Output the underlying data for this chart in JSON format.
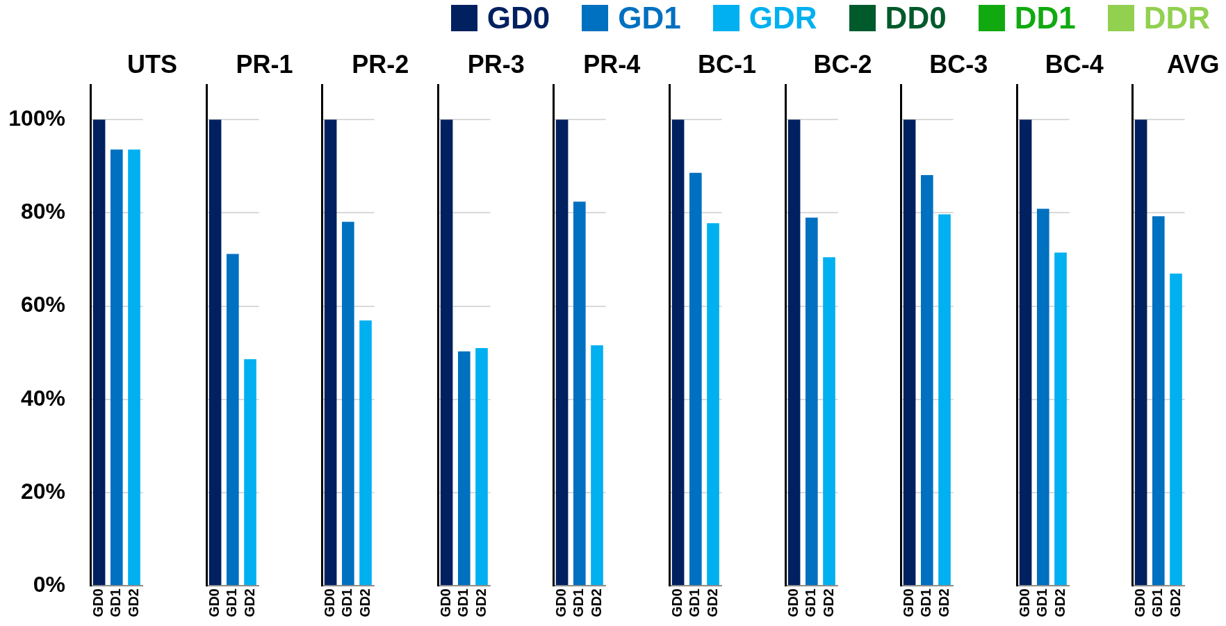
{
  "chart_data": [
    {
      "type": "bar",
      "title": "UTS",
      "categories": [
        "GD0",
        "GD1",
        "GD2"
      ],
      "series": [
        {
          "name": "GD0",
          "color": "#002060",
          "values": [
            100,
            null,
            null
          ]
        },
        {
          "name": "GD1",
          "color": "#0070c0",
          "values": [
            null,
            93.6,
            null
          ]
        },
        {
          "name": "GDR",
          "color": "#00b0f0",
          "values": [
            null,
            null,
            93.6
          ]
        },
        {
          "name": "DD0",
          "color": "#005a2b",
          "values": [
            null,
            null,
            null
          ]
        },
        {
          "name": "DD1",
          "color": "#10aa10",
          "values": [
            null,
            null,
            null
          ]
        },
        {
          "name": "DDR",
          "color": "#92d050",
          "values": [
            null,
            null,
            null
          ]
        }
      ],
      "legend": "top right",
      "ylim": [
        0,
        107.5
      ],
      "yticks": [
        {
          "value": 0,
          "label": "0%"
        },
        {
          "value": 20,
          "label": "20%"
        },
        {
          "value": 40,
          "label": "40%"
        },
        {
          "value": 60,
          "label": "60%"
        },
        {
          "value": 80,
          "label": "80%"
        },
        {
          "value": 100,
          "label": "100%"
        }
      ],
      "grid": "y"
    },
    {
      "type": "bar",
      "title": "PR-1",
      "categories": [
        "GD0",
        "GD1",
        "GD2"
      ],
      "values": [
        100,
        71.2,
        48.6
      ],
      "colors": [
        "#002060",
        "#0070c0",
        "#00b0f0"
      ],
      "ylim": [
        0,
        107.5
      ],
      "yticks": [
        {
          "value": 0,
          "label": null
        },
        {
          "value": 20,
          "label": null
        },
        {
          "value": 40,
          "label": null
        },
        {
          "value": 60,
          "label": null
        },
        {
          "value": 80,
          "label": null
        },
        {
          "value": 100,
          "label": null
        }
      ],
      "grid": "y",
      "tick_labels": "x"
    },
    {
      "type": "bar",
      "title": "PR-2",
      "categories": [
        "GD0",
        "GD1",
        "GD2"
      ],
      "values": [
        100,
        78.1,
        56.9
      ],
      "colors": [
        "#002060",
        "#0070c0",
        "#00b0f0"
      ],
      "ylim": [
        0,
        107.5
      ],
      "yticks": [
        {
          "value": 0,
          "label": null
        },
        {
          "value": 20,
          "label": null
        },
        {
          "value": 40,
          "label": null
        },
        {
          "value": 60,
          "label": null
        },
        {
          "value": 80,
          "label": null
        },
        {
          "value": 100,
          "label": null
        }
      ],
      "grid": "y",
      "tick_labels": "x"
    },
    {
      "type": "bar",
      "title": "PR-3",
      "categories": [
        "GD0",
        "GD1",
        "GD2"
      ],
      "values": [
        100,
        50.3,
        51.0
      ],
      "colors": [
        "#002060",
        "#0070c0",
        "#00b0f0"
      ],
      "ylim": [
        0,
        107.5
      ],
      "yticks": [
        {
          "value": 0,
          "label": null
        },
        {
          "value": 20,
          "label": null
        },
        {
          "value": 40,
          "label": null
        },
        {
          "value": 60,
          "label": null
        },
        {
          "value": 80,
          "label": null
        },
        {
          "value": 100,
          "label": null
        }
      ],
      "grid": "y",
      "tick_labels": "x"
    },
    {
      "type": "bar",
      "title": "PR-4",
      "categories": [
        "GD0",
        "GD1",
        "GD2"
      ],
      "values": [
        100,
        82.4,
        51.6
      ],
      "colors": [
        "#002060",
        "#0070c0",
        "#00b0f0"
      ],
      "ylim": [
        0,
        107.5
      ],
      "yticks": [
        {
          "value": 0,
          "label": null
        },
        {
          "value": 20,
          "label": null
        },
        {
          "value": 40,
          "label": null
        },
        {
          "value": 60,
          "label": null
        },
        {
          "value": 80,
          "label": null
        },
        {
          "value": 100,
          "label": null
        }
      ],
      "grid": "y",
      "tick_labels": "x"
    },
    {
      "type": "bar",
      "title": "BC-1",
      "categories": [
        "GD0",
        "GD1",
        "GD2"
      ],
      "values": [
        100,
        88.6,
        77.8
      ],
      "colors": [
        "#002060",
        "#0070c0",
        "#00b0f0"
      ],
      "ylim": [
        0,
        107.5
      ],
      "yticks": [
        {
          "value": 0,
          "label": null
        },
        {
          "value": 20,
          "label": null
        },
        {
          "value": 40,
          "label": null
        },
        {
          "value": 60,
          "label": null
        },
        {
          "value": 80,
          "label": null
        },
        {
          "value": 100,
          "label": null
        }
      ],
      "grid": "y",
      "tick_labels": "x"
    },
    {
      "type": "bar",
      "title": "BC-2",
      "categories": [
        "GD0",
        "GD1",
        "GD2"
      ],
      "values": [
        100,
        79.0,
        70.5
      ],
      "colors": [
        "#002060",
        "#0070c0",
        "#00b0f0"
      ],
      "ylim": [
        0,
        107.5
      ],
      "yticks": [
        {
          "value": 0,
          "label": null
        },
        {
          "value": 20,
          "label": null
        },
        {
          "value": 40,
          "label": null
        },
        {
          "value": 60,
          "label": null
        },
        {
          "value": 80,
          "label": null
        },
        {
          "value": 100,
          "label": null
        }
      ],
      "grid": "y",
      "tick_labels": "x"
    },
    {
      "type": "bar",
      "title": "BC-3",
      "categories": [
        "GD0",
        "GD1",
        "GD2"
      ],
      "values": [
        100,
        88.1,
        79.7
      ],
      "colors": [
        "#002060",
        "#0070c0",
        "#00b0f0"
      ],
      "ylim": [
        0,
        107.5
      ],
      "yticks": [
        {
          "value": 0,
          "label": null
        },
        {
          "value": 20,
          "label": null
        },
        {
          "value": 40,
          "label": null
        },
        {
          "value": 60,
          "label": null
        },
        {
          "value": 80,
          "label": null
        },
        {
          "value": 100,
          "label": null
        }
      ],
      "grid": "y",
      "tick_labels": "x"
    },
    {
      "type": "bar",
      "title": "BC-4",
      "categories": [
        "GD0",
        "GD1",
        "GD2"
      ],
      "values": [
        100,
        80.9,
        71.5
      ],
      "colors": [
        "#002060",
        "#0070c0",
        "#00b0f0"
      ],
      "ylim": [
        0,
        107.5
      ],
      "yticks": [
        {
          "value": 0,
          "label": null
        },
        {
          "value": 20,
          "label": null
        },
        {
          "value": 40,
          "label": null
        },
        {
          "value": 60,
          "label": null
        },
        {
          "value": 80,
          "label": null
        },
        {
          "value": 100,
          "label": null
        }
      ],
      "grid": "y",
      "tick_labels": "x"
    },
    {
      "type": "bar",
      "title": "AVG",
      "categories": [
        "GD0",
        "GD1",
        "GD2"
      ],
      "values": [
        100,
        79.3,
        67.0
      ],
      "colors": [
        "#002060",
        "#0070c0",
        "#00b0f0"
      ],
      "ylim": [
        0,
        107.5
      ],
      "yticks": [
        {
          "value": 0,
          "label": null
        },
        {
          "value": 20,
          "label": null
        },
        {
          "value": 40,
          "label": null
        },
        {
          "value": 60,
          "label": null
        },
        {
          "value": 80,
          "label": null
        },
        {
          "value": 100,
          "label": null
        }
      ],
      "grid": "y",
      "tick_labels": "x"
    }
  ]
}
